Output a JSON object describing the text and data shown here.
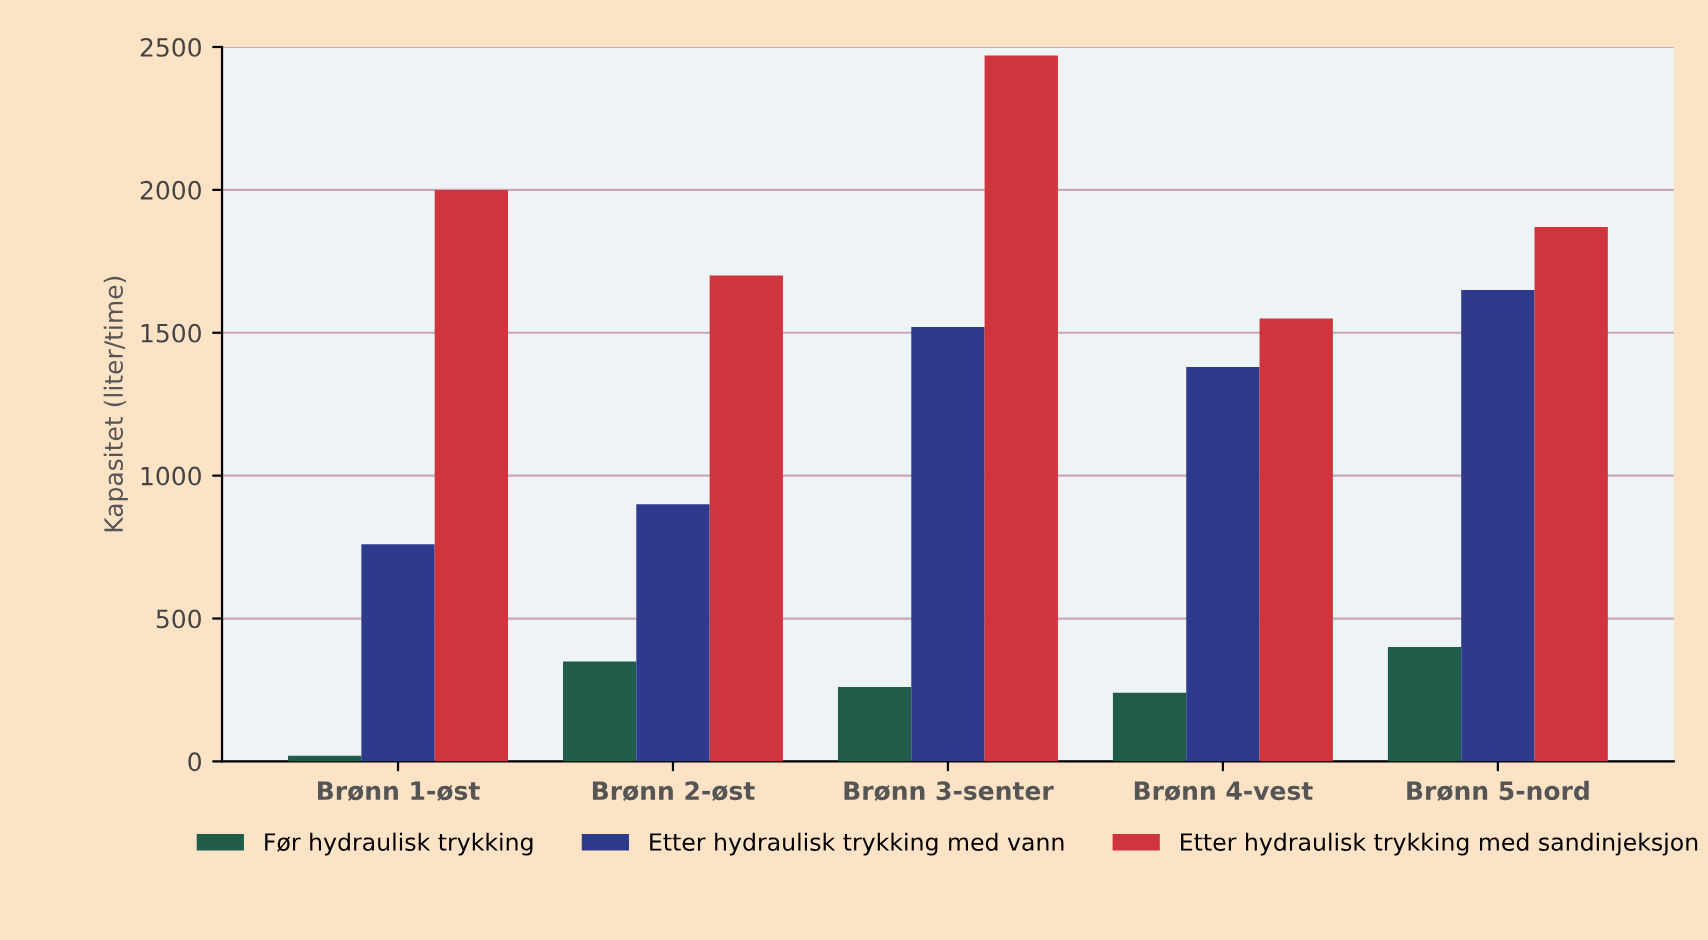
{
  "chart_data": {
    "type": "bar",
    "ylabel": "Kapasitet (liter/time)",
    "categories": [
      "Brønn 1-øst",
      "Brønn 2-øst",
      "Brønn 3-senter",
      "Brønn 4-vest",
      "Brønn 5-nord"
    ],
    "series": [
      {
        "name": "Før hydraulisk trykking",
        "color": "#1f5c4a",
        "values": [
          20,
          350,
          260,
          240,
          400
        ]
      },
      {
        "name": "Etter hydraulisk trykking med vann",
        "color": "#2e3a8c",
        "values": [
          760,
          900,
          1520,
          1380,
          1650
        ]
      },
      {
        "name": "Etter hydraulisk trykking med sandinjeksjon",
        "color": "#d0343c",
        "values": [
          2000,
          1700,
          2470,
          1550,
          1870
        ]
      }
    ],
    "ylim": [
      0,
      2500
    ],
    "yticks": [
      0,
      500,
      1000,
      1500,
      2000,
      2500
    ],
    "grid": "y",
    "legend": "bottom"
  }
}
